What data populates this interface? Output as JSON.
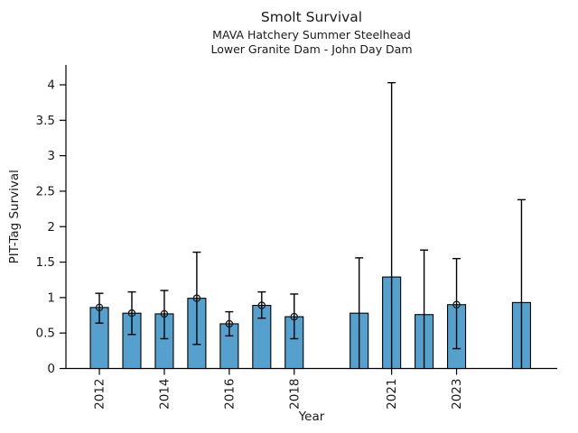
{
  "chart_data": {
    "type": "bar",
    "title": "Smolt Survival",
    "subtitle": [
      "MAVA Hatchery Summer Steelhead",
      "Lower Granite Dam - John Day Dam"
    ],
    "xlabel": "Year",
    "ylabel": "PIT-Tag Survival",
    "x": [
      2012,
      2013,
      2014,
      2015,
      2016,
      2017,
      2018,
      2020,
      2021,
      2022,
      2023,
      2025
    ],
    "values": [
      0.86,
      0.78,
      0.77,
      0.99,
      0.63,
      0.89,
      0.73,
      0.78,
      1.29,
      0.76,
      0.9,
      0.93
    ],
    "err_low": [
      0.64,
      0.48,
      0.42,
      0.34,
      0.46,
      0.71,
      0.42,
      0.0,
      0.0,
      0.0,
      0.28,
      0.0
    ],
    "err_high": [
      1.06,
      1.08,
      1.1,
      1.64,
      0.8,
      1.08,
      1.05,
      1.56,
      4.03,
      1.67,
      1.55,
      2.38
    ],
    "point_marker": [
      true,
      true,
      true,
      true,
      true,
      true,
      true,
      false,
      false,
      false,
      true,
      false
    ],
    "x_ticks": [
      2012,
      2014,
      2016,
      2018,
      2021,
      2023
    ],
    "y_ticks": [
      0,
      0.5,
      1,
      1.5,
      2,
      2.5,
      3,
      3.5,
      4
    ],
    "xlim": [
      2010.97,
      2026.1
    ],
    "ylim": [
      0,
      4.28
    ],
    "legend": "none",
    "grid": false,
    "bar_color": "#56a0ce",
    "bar_edge_color": "#000000",
    "error_color": "#000000",
    "marker_style": "open-circle",
    "background_color": "#ffffff"
  }
}
